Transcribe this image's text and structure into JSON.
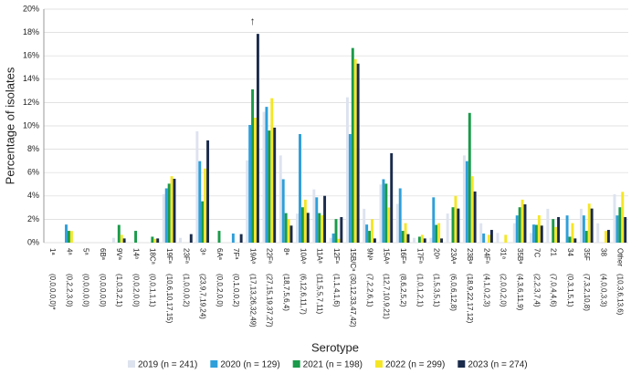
{
  "chart_data": {
    "type": "bar",
    "y_label": "Percentage of isolates",
    "x_label": "Serotype",
    "annotation": "↑",
    "categories": [
      "1ᵃ",
      "4ᵃ",
      "5ᵃ",
      "6Bᵃ",
      "9Vᵃ",
      "14ᵃ",
      "18Cᵃ",
      "19Fᵃ",
      "23Fᵃ",
      "3ᵃ",
      "6Aᵃ",
      "7Fᵃ",
      "19Aᵃ",
      "22Fᵃ",
      "8ᵃ",
      "10Aᵃ",
      "11Aᵃ",
      "12Fᵃ",
      "15B/Cᵃ",
      "9Nᵃ",
      "15Aᵃ",
      "16Fᵃ",
      "17Fᵃ",
      "20ᵃ",
      "23Aᵃ",
      "23Bᵃ",
      "24Fᵃ",
      "31ᵃ",
      "35Bᵃ",
      "7C",
      "21",
      "34",
      "35F",
      "38",
      "Other"
    ],
    "count_labels": [
      "(0,0,0,0,0)*",
      "(0,2,2,3,0)",
      "(0,0,0,0,0)",
      "(0,0,0,0,0)",
      "(1,0,3,2,1)",
      "(0,0,2,0,0)",
      "(0,0,1,1,1)",
      "(10,6,10,17,15)",
      "(1,0,0,0,2)",
      "(23,9,7,19,24)",
      "(0,0,2,0,0)",
      "(0,1,0,0,2)",
      "(17,13,26,32,49)",
      "(27,15,19,37,27)",
      "(18,7,5,6,4)",
      "(6,12,6,11,7)",
      "(11,5,5,7,11)",
      "(1,1,4,1,6)",
      "(30,12,33,47,42)",
      "(7,2,2,6,1)",
      "(12,7,10,9,21)",
      "(8,6,2,5,2)",
      "(1,0,1,2,1)",
      "(1,5,3,5,1)",
      "(6,0,6,12,8)",
      "(18,9,22,17,12)",
      "(4,1,0,2,3)",
      "(2,0,0,2,0)",
      "(4,3,6,11,9)",
      "(2,2,3,7,4)",
      "(7,0,4,4,6)",
      "(0,3,1,5,1)",
      "(7,3,2,10,8)",
      "(4,0,0,3,3)",
      "(10,3,6,13,6)"
    ],
    "series": [
      {
        "name": "2019 (n = 241)",
        "color": "#dde3ef",
        "values": [
          0,
          0,
          0,
          0,
          0.41,
          0,
          0,
          4.15,
          0.41,
          9.54,
          0,
          0,
          7.05,
          11.2,
          7.47,
          2.49,
          4.56,
          0.41,
          12.45,
          2.9,
          4.98,
          3.32,
          0.41,
          0.41,
          2.49,
          7.47,
          1.66,
          0.83,
          1.66,
          0.83,
          2.9,
          0,
          2.9,
          1.66,
          4.15
        ]
      },
      {
        "name": "2020 (n = 129)",
        "color": "#2e9fd9",
        "values": [
          0,
          1.55,
          0,
          0,
          0,
          0,
          0,
          4.65,
          0,
          6.98,
          0,
          0.78,
          10.08,
          11.63,
          5.43,
          9.3,
          3.88,
          0.78,
          9.3,
          1.55,
          5.43,
          4.65,
          0,
          3.88,
          0,
          6.98,
          0.78,
          0,
          2.33,
          1.55,
          0,
          2.33,
          2.33,
          0,
          2.33
        ]
      },
      {
        "name": "2021 (n = 198)",
        "color": "#1a9a4a",
        "values": [
          0,
          1.01,
          0,
          0,
          1.52,
          1.01,
          0.51,
          5.05,
          0,
          3.54,
          1.01,
          0,
          13.13,
          9.6,
          2.53,
          3.03,
          2.53,
          2.02,
          16.67,
          1.01,
          5.05,
          1.01,
          0.51,
          1.52,
          3.03,
          11.11,
          0,
          0,
          3.03,
          1.52,
          2.02,
          0.51,
          1.01,
          0,
          3.03
        ]
      },
      {
        "name": "2022 (n = 299)",
        "color": "#f5e625",
        "values": [
          0,
          1.0,
          0,
          0,
          0.67,
          0,
          0.33,
          5.69,
          0,
          6.35,
          0,
          0,
          10.7,
          12.37,
          2.01,
          3.68,
          2.34,
          0.33,
          15.72,
          2.01,
          3.01,
          1.67,
          0.67,
          1.67,
          4.01,
          5.69,
          0.67,
          0.67,
          3.68,
          2.34,
          1.34,
          1.67,
          3.34,
          1.0,
          4.35
        ]
      },
      {
        "name": "2023 (n = 274)",
        "color": "#1a2b4c",
        "values": [
          0,
          0,
          0,
          0,
          0.36,
          0,
          0.36,
          5.47,
          0.73,
          8.76,
          0,
          0.73,
          17.88,
          9.85,
          1.46,
          2.55,
          4.01,
          2.19,
          15.33,
          0.36,
          7.66,
          0.73,
          0.36,
          0.36,
          2.92,
          4.38,
          1.09,
          0,
          3.28,
          1.46,
          2.19,
          0.36,
          2.92,
          1.09,
          2.19
        ]
      }
    ],
    "ylim": [
      0,
      20
    ],
    "yticks": [
      {
        "value": 0,
        "label": "0%"
      },
      {
        "value": 2,
        "label": "2%"
      },
      {
        "value": 4,
        "label": "4%"
      },
      {
        "value": 6,
        "label": "6%"
      },
      {
        "value": 8,
        "label": "8%"
      },
      {
        "value": 10,
        "label": "10%"
      },
      {
        "value": 12,
        "label": "12%"
      },
      {
        "value": 14,
        "label": "14%"
      },
      {
        "value": 16,
        "label": "16%"
      },
      {
        "value": 18,
        "label": "18%"
      },
      {
        "value": 20,
        "label": "20%"
      }
    ],
    "annotation_at": {
      "category": 12,
      "value": 18.6
    },
    "grid": true
  }
}
